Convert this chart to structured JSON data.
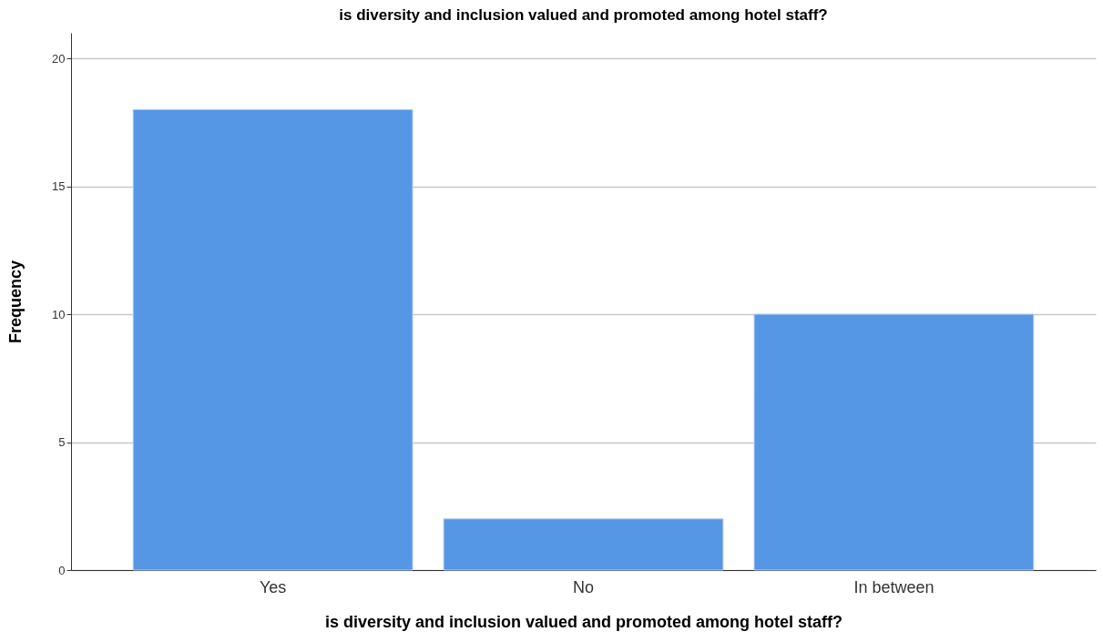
{
  "chart_data": {
    "type": "bar",
    "title": "is diversity and inclusion valued and promoted among hotel staff?",
    "xlabel": "is diversity and inclusion valued and promoted among hotel staff?",
    "ylabel": "Frequency",
    "categories": [
      "Yes",
      "No",
      "In between"
    ],
    "values": [
      18,
      2,
      10
    ],
    "color": "#5596e5",
    "ylim": [
      0,
      21
    ],
    "yticks": [
      0,
      5,
      10,
      15,
      20
    ],
    "grid": "y"
  }
}
